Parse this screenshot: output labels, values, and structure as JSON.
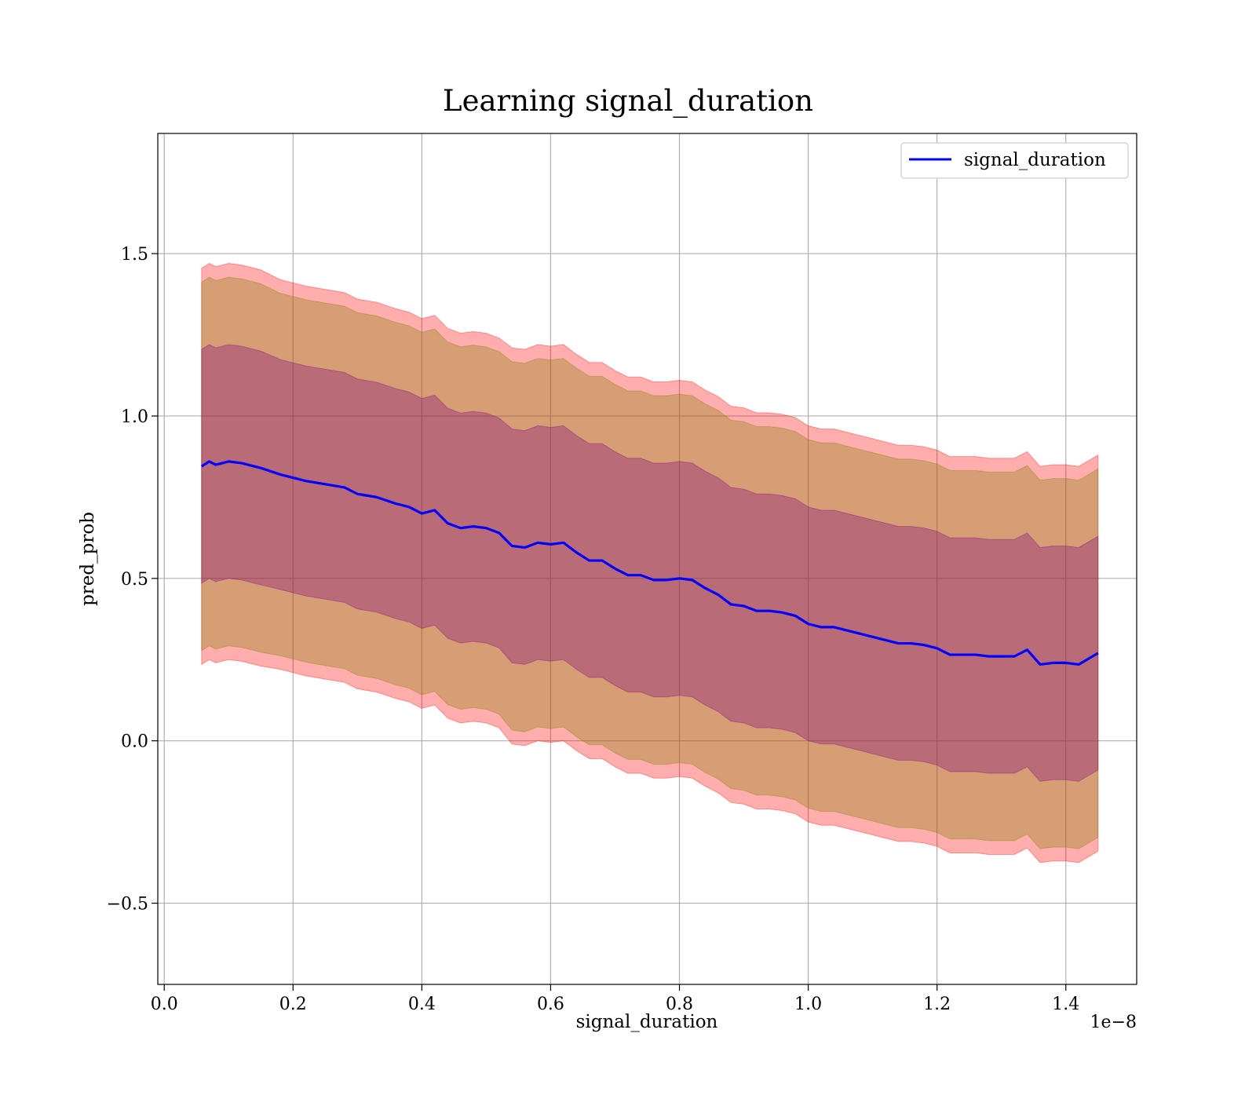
{
  "chart_data": {
    "type": "line",
    "title": "Learning signal_duration",
    "xlabel": "signal_duration",
    "ylabel": "pred_prob",
    "x_offset_label": "1e−8",
    "xlim": [
      -0.01,
      1.51
    ],
    "ylim": [
      -0.75,
      1.87
    ],
    "xticks": [
      0.0,
      0.2,
      0.4,
      0.6,
      0.8,
      1.0,
      1.2,
      1.4
    ],
    "xtick_labels": [
      "0.0",
      "0.2",
      "0.4",
      "0.6",
      "0.8",
      "1.0",
      "1.2",
      "1.4"
    ],
    "yticks": [
      -0.5,
      0.0,
      0.5,
      1.0,
      1.5
    ],
    "ytick_labels": [
      "−0.5",
      "0.0",
      "0.5",
      "1.0",
      "1.5"
    ],
    "grid": true,
    "legend_position": "top-right",
    "colors": {
      "line": "#0000ff",
      "band_outer": "#ff0000",
      "band_middle": "#808000",
      "band_inner": "#800080"
    },
    "series": [
      {
        "name": "signal_duration",
        "x": [
          0.058,
          0.07,
          0.08,
          0.1,
          0.12,
          0.15,
          0.18,
          0.2,
          0.22,
          0.25,
          0.28,
          0.3,
          0.33,
          0.36,
          0.38,
          0.4,
          0.42,
          0.44,
          0.46,
          0.48,
          0.5,
          0.52,
          0.54,
          0.56,
          0.58,
          0.6,
          0.62,
          0.64,
          0.66,
          0.68,
          0.7,
          0.72,
          0.74,
          0.76,
          0.78,
          0.8,
          0.82,
          0.84,
          0.86,
          0.88,
          0.9,
          0.92,
          0.94,
          0.96,
          0.98,
          1.0,
          1.02,
          1.04,
          1.06,
          1.08,
          1.1,
          1.12,
          1.14,
          1.16,
          1.18,
          1.2,
          1.22,
          1.24,
          1.26,
          1.28,
          1.3,
          1.32,
          1.34,
          1.36,
          1.38,
          1.4,
          1.42,
          1.45
        ],
        "y": [
          0.845,
          0.86,
          0.85,
          0.86,
          0.855,
          0.84,
          0.82,
          0.81,
          0.8,
          0.79,
          0.78,
          0.76,
          0.75,
          0.73,
          0.72,
          0.7,
          0.71,
          0.67,
          0.655,
          0.66,
          0.655,
          0.64,
          0.6,
          0.595,
          0.61,
          0.605,
          0.61,
          0.58,
          0.555,
          0.555,
          0.53,
          0.51,
          0.51,
          0.495,
          0.495,
          0.5,
          0.495,
          0.47,
          0.45,
          0.42,
          0.415,
          0.4,
          0.4,
          0.395,
          0.385,
          0.36,
          0.35,
          0.35,
          0.34,
          0.33,
          0.32,
          0.31,
          0.3,
          0.3,
          0.295,
          0.285,
          0.265,
          0.265,
          0.265,
          0.26,
          0.26,
          0.26,
          0.28,
          0.235,
          0.24,
          0.24,
          0.235,
          0.27
        ],
        "std": [
          0.61,
          0.61,
          0.61,
          0.61,
          0.61,
          0.61,
          0.6,
          0.6,
          0.6,
          0.6,
          0.6,
          0.6,
          0.6,
          0.6,
          0.6,
          0.6,
          0.6,
          0.6,
          0.6,
          0.6,
          0.6,
          0.6,
          0.61,
          0.61,
          0.61,
          0.61,
          0.61,
          0.61,
          0.61,
          0.61,
          0.61,
          0.61,
          0.61,
          0.61,
          0.61,
          0.61,
          0.61,
          0.61,
          0.61,
          0.61,
          0.61,
          0.61,
          0.61,
          0.61,
          0.61,
          0.61,
          0.61,
          0.61,
          0.61,
          0.61,
          0.61,
          0.61,
          0.61,
          0.61,
          0.61,
          0.61,
          0.61,
          0.61,
          0.61,
          0.61,
          0.61,
          0.61,
          0.61,
          0.61,
          0.61,
          0.61,
          0.61,
          0.61
        ]
      }
    ]
  }
}
